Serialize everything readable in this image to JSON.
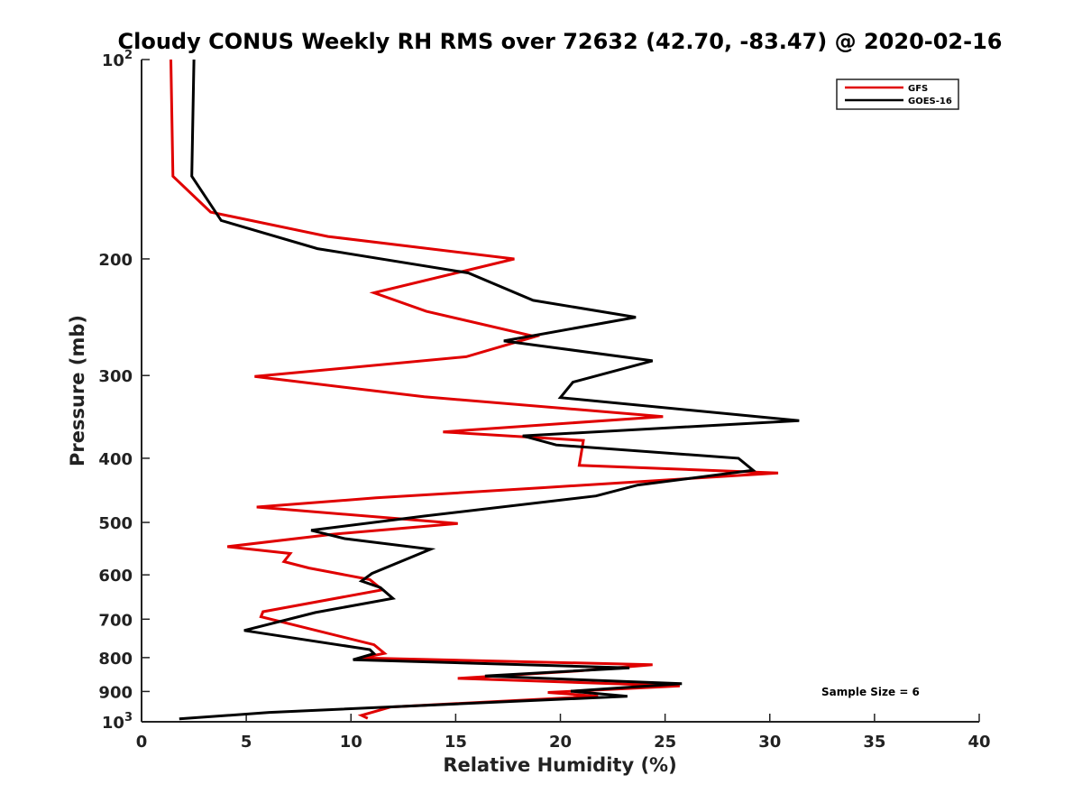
{
  "chart_data": {
    "type": "line",
    "title": "Cloudy CONUS Weekly RH RMS over 72632 (42.70, -83.47) @ 2020-02-16",
    "xlabel": "Relative Humidity (%)",
    "ylabel": "Pressure (mb)",
    "xlim": [
      0,
      40
    ],
    "ylim": [
      100,
      1000
    ],
    "y_scale": "log",
    "y_reversed": true,
    "grid": false,
    "legend_position": "top-right",
    "x_ticks": [
      "0",
      "5",
      "10",
      "15",
      "20",
      "25",
      "30",
      "35",
      "40"
    ],
    "y_ticks": [
      {
        "value": 100,
        "base": "10",
        "exp": "2"
      },
      {
        "value": 200,
        "label": "200"
      },
      {
        "value": 300,
        "label": "300"
      },
      {
        "value": 400,
        "label": "400"
      },
      {
        "value": 500,
        "label": "500"
      },
      {
        "value": 600,
        "label": "600"
      },
      {
        "value": 700,
        "label": "700"
      },
      {
        "value": 800,
        "label": "800"
      },
      {
        "value": 900,
        "label": "900"
      },
      {
        "value": 1000,
        "base": "10",
        "exp": "3"
      }
    ],
    "series": [
      {
        "name": "GFS",
        "color": "#e00000",
        "points": [
          [
            1.4,
            100
          ],
          [
            1.5,
            150
          ],
          [
            3.3,
            170
          ],
          [
            8.9,
            185
          ],
          [
            17.8,
            200
          ],
          [
            11.1,
            225
          ],
          [
            13.6,
            240
          ],
          [
            18.8,
            262
          ],
          [
            15.5,
            281
          ],
          [
            5.4,
            301
          ],
          [
            13.5,
            323
          ],
          [
            24.9,
            346
          ],
          [
            14.4,
            365
          ],
          [
            21.1,
            376
          ],
          [
            20.9,
            410
          ],
          [
            30.4,
            421
          ],
          [
            19.2,
            443
          ],
          [
            11.2,
            459
          ],
          [
            5.5,
            474
          ],
          [
            15.1,
            502
          ],
          [
            9.1,
            521
          ],
          [
            4.1,
            544
          ],
          [
            7.1,
            557
          ],
          [
            6.8,
            573
          ],
          [
            8.0,
            586
          ],
          [
            10.9,
            610
          ],
          [
            11.5,
            632
          ],
          [
            5.8,
            682
          ],
          [
            5.7,
            694
          ],
          [
            11.1,
            765
          ],
          [
            11.6,
            788
          ],
          [
            10.5,
            801
          ],
          [
            24.4,
            820
          ],
          [
            20.8,
            838
          ],
          [
            15.1,
            860
          ],
          [
            25.7,
            883
          ],
          [
            19.4,
            903
          ],
          [
            21.8,
            915
          ],
          [
            11.9,
            950
          ],
          [
            10.5,
            978
          ],
          [
            10.8,
            988
          ]
        ]
      },
      {
        "name": "GOES-16",
        "color": "#000000",
        "points": [
          [
            2.5,
            100
          ],
          [
            2.4,
            150
          ],
          [
            3.8,
            175
          ],
          [
            8.4,
            193
          ],
          [
            15.6,
            210
          ],
          [
            18.7,
            231
          ],
          [
            23.6,
            245
          ],
          [
            17.3,
            266
          ],
          [
            24.4,
            285
          ],
          [
            20.6,
            307
          ],
          [
            20.0,
            324
          ],
          [
            31.4,
            351
          ],
          [
            18.2,
            370
          ],
          [
            19.8,
            382
          ],
          [
            28.5,
            400
          ],
          [
            29.2,
            417
          ],
          [
            23.7,
            439
          ],
          [
            21.7,
            456
          ],
          [
            13.5,
            489
          ],
          [
            8.1,
            514
          ],
          [
            9.7,
            529
          ],
          [
            13.8,
            549
          ],
          [
            11.0,
            597
          ],
          [
            10.5,
            613
          ],
          [
            11.4,
            627
          ],
          [
            12.0,
            651
          ],
          [
            8.3,
            684
          ],
          [
            4.9,
            728
          ],
          [
            10.9,
            778
          ],
          [
            11.1,
            789
          ],
          [
            10.1,
            806
          ],
          [
            23.3,
            829
          ],
          [
            16.4,
            853
          ],
          [
            25.8,
            876
          ],
          [
            20.5,
            899
          ],
          [
            23.2,
            915
          ],
          [
            6.1,
            968
          ],
          [
            1.8,
            990
          ]
        ]
      }
    ],
    "annotations": [
      "Sample Size = 6"
    ]
  }
}
